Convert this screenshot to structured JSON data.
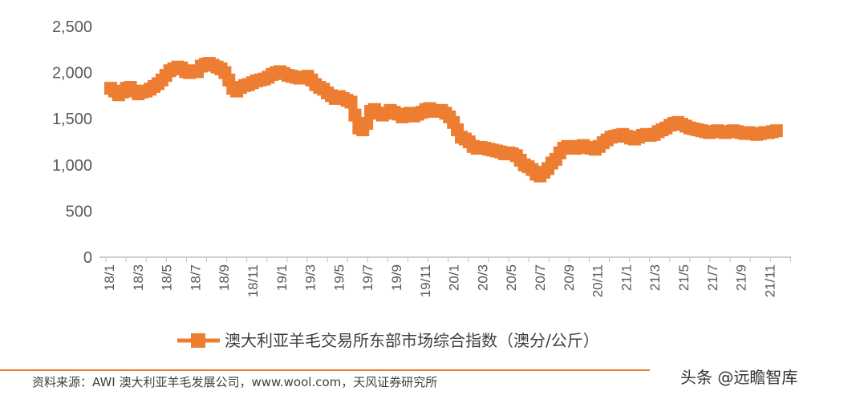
{
  "chart_data": {
    "type": "line",
    "title": "",
    "ylabel": "",
    "xlabel": "",
    "ylim": [
      0,
      2500
    ],
    "yticks": [
      "0",
      "500",
      "1,000",
      "1,500",
      "2,000",
      "2,500"
    ],
    "ytick_values": [
      0,
      500,
      1000,
      1500,
      2000,
      2500
    ],
    "xtick_labels": [
      "18/1",
      "18/3",
      "18/5",
      "18/7",
      "18/9",
      "18/11",
      "19/1",
      "19/3",
      "19/5",
      "19/7",
      "19/9",
      "19/11",
      "20/1",
      "20/3",
      "20/5",
      "20/7",
      "20/9",
      "20/11",
      "21/1",
      "21/3",
      "21/5",
      "21/7",
      "21/9",
      "21/11"
    ],
    "x_start_month": "2018-01",
    "x_end_month": "2021-12",
    "legend_position": "bottom",
    "series": [
      {
        "name": "澳大利亚羊毛交易所东部市场综合指数（澳分/公斤）",
        "color": "#ED7D31",
        "points": [
          [
            0.0,
            1830
          ],
          [
            0.2,
            1800
          ],
          [
            0.4,
            1760
          ],
          [
            0.6,
            1790
          ],
          [
            0.8,
            1830
          ],
          [
            1.0,
            1840
          ],
          [
            1.2,
            1800
          ],
          [
            1.4,
            1770
          ],
          [
            1.6,
            1790
          ],
          [
            1.8,
            1800
          ],
          [
            2.0,
            1820
          ],
          [
            2.2,
            1850
          ],
          [
            2.4,
            1880
          ],
          [
            2.6,
            1920
          ],
          [
            2.8,
            1970
          ],
          [
            3.0,
            2020
          ],
          [
            3.2,
            2040
          ],
          [
            3.4,
            2060
          ],
          [
            3.6,
            2050
          ],
          [
            3.8,
            2010
          ],
          [
            4.0,
            2000
          ],
          [
            4.2,
            2020
          ],
          [
            4.4,
            2010
          ],
          [
            4.6,
            2070
          ],
          [
            4.8,
            2090
          ],
          [
            5.0,
            2100
          ],
          [
            5.2,
            2080
          ],
          [
            5.4,
            2060
          ],
          [
            5.6,
            2040
          ],
          [
            5.8,
            2000
          ],
          [
            6.0,
            1920
          ],
          [
            6.2,
            1830
          ],
          [
            6.4,
            1800
          ],
          [
            6.6,
            1840
          ],
          [
            6.8,
            1860
          ],
          [
            7.0,
            1870
          ],
          [
            7.2,
            1890
          ],
          [
            7.4,
            1910
          ],
          [
            7.6,
            1920
          ],
          [
            7.8,
            1930
          ],
          [
            8.0,
            1950
          ],
          [
            8.2,
            1980
          ],
          [
            8.4,
            2000
          ],
          [
            8.6,
            2010
          ],
          [
            8.8,
            1990
          ],
          [
            9.0,
            1970
          ],
          [
            9.2,
            1960
          ],
          [
            9.4,
            1950
          ],
          [
            9.6,
            1940
          ],
          [
            9.8,
            1950
          ],
          [
            10.0,
            1960
          ],
          [
            10.2,
            1920
          ],
          [
            10.4,
            1870
          ],
          [
            10.6,
            1840
          ],
          [
            10.8,
            1820
          ],
          [
            11.0,
            1780
          ],
          [
            11.2,
            1750
          ],
          [
            11.4,
            1720
          ],
          [
            11.6,
            1740
          ],
          [
            11.8,
            1720
          ],
          [
            12.0,
            1700
          ],
          [
            12.2,
            1680
          ],
          [
            12.4,
            1540
          ],
          [
            12.6,
            1400
          ],
          [
            12.8,
            1380
          ],
          [
            13.0,
            1450
          ],
          [
            13.2,
            1580
          ],
          [
            13.4,
            1600
          ],
          [
            13.6,
            1560
          ],
          [
            13.8,
            1540
          ],
          [
            14.0,
            1560
          ],
          [
            14.2,
            1590
          ],
          [
            14.4,
            1570
          ],
          [
            14.6,
            1550
          ],
          [
            14.8,
            1520
          ],
          [
            15.0,
            1540
          ],
          [
            15.2,
            1560
          ],
          [
            15.4,
            1530
          ],
          [
            15.6,
            1550
          ],
          [
            15.8,
            1570
          ],
          [
            16.0,
            1600
          ],
          [
            16.2,
            1610
          ],
          [
            16.4,
            1580
          ],
          [
            16.6,
            1580
          ],
          [
            16.8,
            1590
          ],
          [
            17.0,
            1560
          ],
          [
            17.2,
            1520
          ],
          [
            17.4,
            1460
          ],
          [
            17.6,
            1380
          ],
          [
            17.8,
            1300
          ],
          [
            18.0,
            1280
          ],
          [
            18.2,
            1250
          ],
          [
            18.4,
            1200
          ],
          [
            18.6,
            1180
          ],
          [
            18.8,
            1190
          ],
          [
            19.0,
            1180
          ],
          [
            19.2,
            1170
          ],
          [
            19.4,
            1160
          ],
          [
            19.6,
            1150
          ],
          [
            19.8,
            1140
          ],
          [
            20.0,
            1120
          ],
          [
            20.2,
            1130
          ],
          [
            20.4,
            1120
          ],
          [
            20.6,
            1100
          ],
          [
            20.8,
            1050
          ],
          [
            21.0,
            1000
          ],
          [
            21.2,
            980
          ],
          [
            21.4,
            950
          ],
          [
            21.6,
            900
          ],
          [
            21.8,
            880
          ],
          [
            22.0,
            920
          ],
          [
            22.2,
            960
          ],
          [
            22.4,
            1020
          ],
          [
            22.6,
            1060
          ],
          [
            22.8,
            1130
          ],
          [
            23.0,
            1180
          ],
          [
            23.2,
            1200
          ],
          [
            23.4,
            1190
          ],
          [
            23.6,
            1180
          ],
          [
            23.8,
            1200
          ],
          [
            24.0,
            1210
          ],
          [
            24.2,
            1190
          ],
          [
            24.4,
            1180
          ],
          [
            24.6,
            1170
          ],
          [
            24.8,
            1200
          ],
          [
            25.0,
            1240
          ],
          [
            25.2,
            1270
          ],
          [
            25.4,
            1300
          ],
          [
            25.6,
            1310
          ],
          [
            25.8,
            1320
          ],
          [
            26.0,
            1330
          ],
          [
            26.2,
            1310
          ],
          [
            26.4,
            1290
          ],
          [
            26.6,
            1280
          ],
          [
            26.8,
            1300
          ],
          [
            27.0,
            1320
          ],
          [
            27.2,
            1330
          ],
          [
            27.4,
            1320
          ],
          [
            27.6,
            1330
          ],
          [
            27.8,
            1360
          ],
          [
            28.0,
            1380
          ],
          [
            28.2,
            1400
          ],
          [
            28.4,
            1430
          ],
          [
            28.6,
            1450
          ],
          [
            28.8,
            1460
          ],
          [
            29.0,
            1440
          ],
          [
            29.2,
            1420
          ],
          [
            29.4,
            1400
          ],
          [
            29.6,
            1390
          ],
          [
            29.8,
            1380
          ],
          [
            30.0,
            1370
          ],
          [
            30.2,
            1360
          ],
          [
            30.4,
            1350
          ],
          [
            30.6,
            1360
          ],
          [
            30.8,
            1370
          ],
          [
            31.0,
            1360
          ],
          [
            31.2,
            1350
          ],
          [
            31.4,
            1360
          ],
          [
            31.6,
            1370
          ],
          [
            31.8,
            1360
          ],
          [
            32.0,
            1350
          ],
          [
            32.2,
            1340
          ],
          [
            32.4,
            1350
          ],
          [
            32.6,
            1340
          ],
          [
            32.8,
            1330
          ],
          [
            33.0,
            1340
          ],
          [
            33.2,
            1350
          ],
          [
            33.4,
            1350
          ],
          [
            33.6,
            1360
          ],
          [
            33.8,
            1370
          ]
        ]
      }
    ]
  },
  "legend": {
    "label": "澳大利亚羊毛交易所东部市场综合指数（澳分/公斤）"
  },
  "footer": {
    "source": "资料来源：AWI 澳大利亚羊毛发展公司，www.wool.com，天风证券研究所",
    "watermark": "头条 @远瞻智库"
  }
}
